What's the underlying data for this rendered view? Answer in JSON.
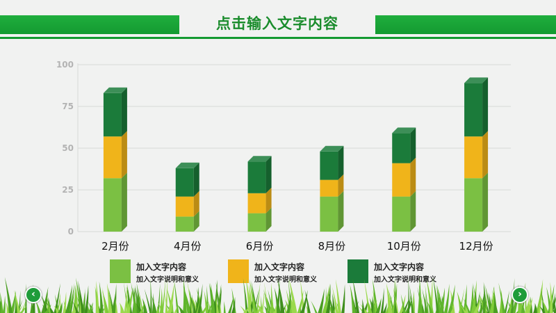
{
  "header": {
    "title": "点击输入文字内容"
  },
  "colors": {
    "primary": "#15a035",
    "lightGreen": "#7bc043",
    "orange": "#f0b41a",
    "darkGreen": "#1b7b3a"
  },
  "chart_data": {
    "type": "bar",
    "stacked": true,
    "categories": [
      "2月份",
      "4月份",
      "6月份",
      "8月份",
      "10月份",
      "12月份"
    ],
    "series": [
      {
        "name": "加入文字内容",
        "description": "加入文字说明和意义",
        "color": "#7bc043",
        "values": [
          32,
          9,
          11,
          21,
          21,
          32
        ]
      },
      {
        "name": "加入文字内容",
        "description": "加入文字说明和意义",
        "color": "#f0b41a",
        "values": [
          25,
          12,
          12,
          10,
          20,
          25
        ]
      },
      {
        "name": "加入文字内容",
        "description": "加入文字说明和意义",
        "color": "#1b7b3a",
        "values": [
          26,
          17,
          19,
          17,
          18,
          32
        ]
      }
    ],
    "ylim": [
      0,
      100
    ],
    "yticks": [
      "0",
      "25",
      "50",
      "75",
      "100"
    ],
    "grid": true,
    "legend_position": "bottom"
  },
  "nav": {
    "prev_icon": "chevron-left-icon",
    "next_icon": "chevron-right-icon"
  }
}
